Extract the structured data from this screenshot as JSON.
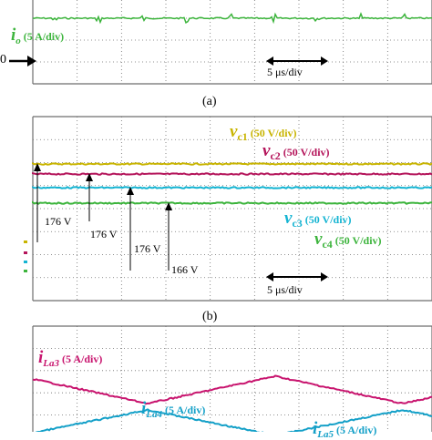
{
  "colors": {
    "io": "#3cb43c",
    "vc1": "#c8b400",
    "vc2": "#b4145a",
    "vc3": "#14b4d2",
    "vc4": "#3cb43c",
    "iLa3": "#c8146e",
    "iLa4": "#14a0c8",
    "grid": "#6e6e6e"
  },
  "panel_a": {
    "caption": "(a)",
    "zero_marker": "0",
    "io_label": {
      "symbol": "i",
      "subscript": "o",
      "scale": "(5 A/div)"
    },
    "time_scale": "5 μs/div"
  },
  "panel_b": {
    "caption": "(b)",
    "vc1_label": {
      "symbol": "v",
      "subscript": "c1",
      "scale": "(50 V/div)"
    },
    "vc2_label": {
      "symbol": "v",
      "subscript": "c2",
      "scale": "(50 V/div)"
    },
    "vc3_label": {
      "symbol": "v",
      "subscript": "c3",
      "scale": "(50 V/div)"
    },
    "vc4_label": {
      "symbol": "v",
      "subscript": "c4",
      "scale": "(50 V/div)"
    },
    "voltage_annotations": [
      "176 V",
      "176 V",
      "176 V",
      "166 V"
    ],
    "time_scale": "5 μs/div"
  },
  "panel_c": {
    "iLa3_label": {
      "symbol": "i",
      "subscript": "La3",
      "scale": "(5 A/div)"
    },
    "iLa4_label": {
      "symbol": "i",
      "subscript": "La4",
      "scale": "(5 A/div)"
    },
    "iLa5_label": {
      "symbol": "i",
      "subscript": "La5",
      "scale": "(5 A/div)"
    }
  }
}
